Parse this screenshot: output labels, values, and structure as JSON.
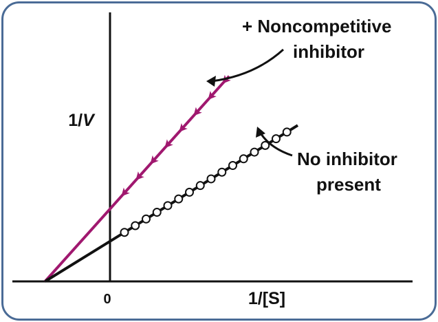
{
  "chart_data": {
    "type": "line",
    "xlabel": "1/[S]",
    "ylabel_parts": {
      "prefix": "1/",
      "var": "V"
    },
    "x_tick_labels": [
      {
        "value": 0,
        "label": "0"
      }
    ],
    "xlim": [
      -1.0,
      4.4
    ],
    "ylim": [
      0,
      3.8
    ],
    "series": [
      {
        "name": "+ Noncompetitive inhibitor",
        "label_lines": [
          "+ Noncompetitive",
          "inhibitor"
        ],
        "color": "#a0186f",
        "marker": "arrow",
        "x_intercept": -0.9,
        "y_intercept": 1.3,
        "x_end": 1.65,
        "points_x": [
          0.2,
          0.4,
          0.6,
          0.8,
          1.0,
          1.2,
          1.4,
          1.6
        ]
      },
      {
        "name": "No inhibitor present",
        "label_lines": [
          "No inhibitor",
          "present"
        ],
        "color": "#111111",
        "marker": "circle",
        "x_intercept": -0.9,
        "y_intercept": 0.72,
        "x_end": 2.6,
        "points_x": [
          0.2,
          0.35,
          0.5,
          0.65,
          0.8,
          0.95,
          1.1,
          1.25,
          1.4,
          1.55,
          1.7,
          1.85,
          2.0,
          2.15,
          2.3,
          2.45
        ]
      }
    ]
  }
}
